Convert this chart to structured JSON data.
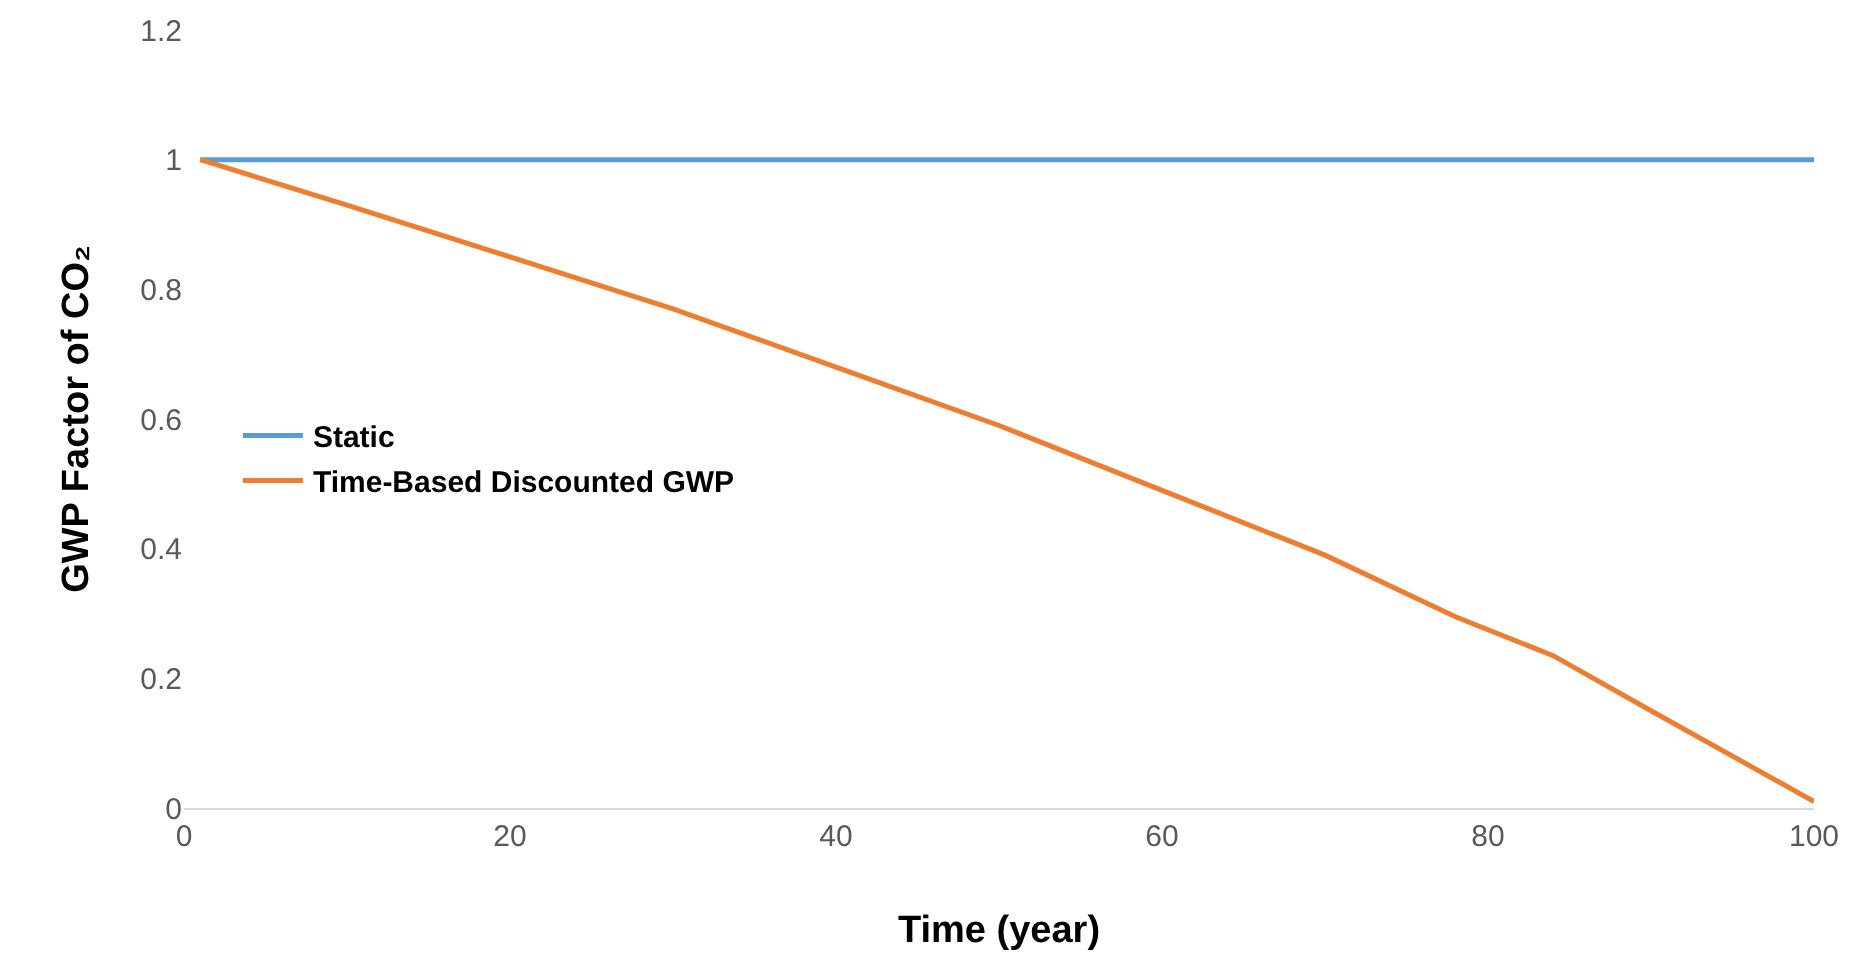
{
  "chart_data": {
    "type": "line",
    "xlabel": "Time (year)",
    "ylabel": "GWP Factor of CO₂",
    "xlim": [
      0,
      100
    ],
    "xticks": [
      0,
      20,
      40,
      60,
      80,
      100
    ],
    "ylim": [
      0,
      1.2
    ],
    "yticks": [
      0,
      0.2,
      0.4,
      0.6,
      0.8,
      1,
      1.2
    ],
    "grid": false,
    "legend": "left",
    "marker": "none",
    "line_style": "solid",
    "series": [
      {
        "name": "Static",
        "color": "#5b9bd5",
        "x": [
          1,
          100
        ],
        "values": [
          1,
          1
        ]
      },
      {
        "name": "Time-Based Discounted GWP",
        "color": "#ed7d31",
        "x": [
          1,
          10,
          20,
          30,
          40,
          50,
          60,
          70,
          78,
          84,
          90,
          95,
          100
        ],
        "values": [
          1,
          0.93,
          0.85,
          0.77,
          0.68,
          0.59,
          0.49,
          0.39,
          0.295,
          0.235,
          0.15,
          0.08,
          0.01
        ]
      }
    ]
  }
}
